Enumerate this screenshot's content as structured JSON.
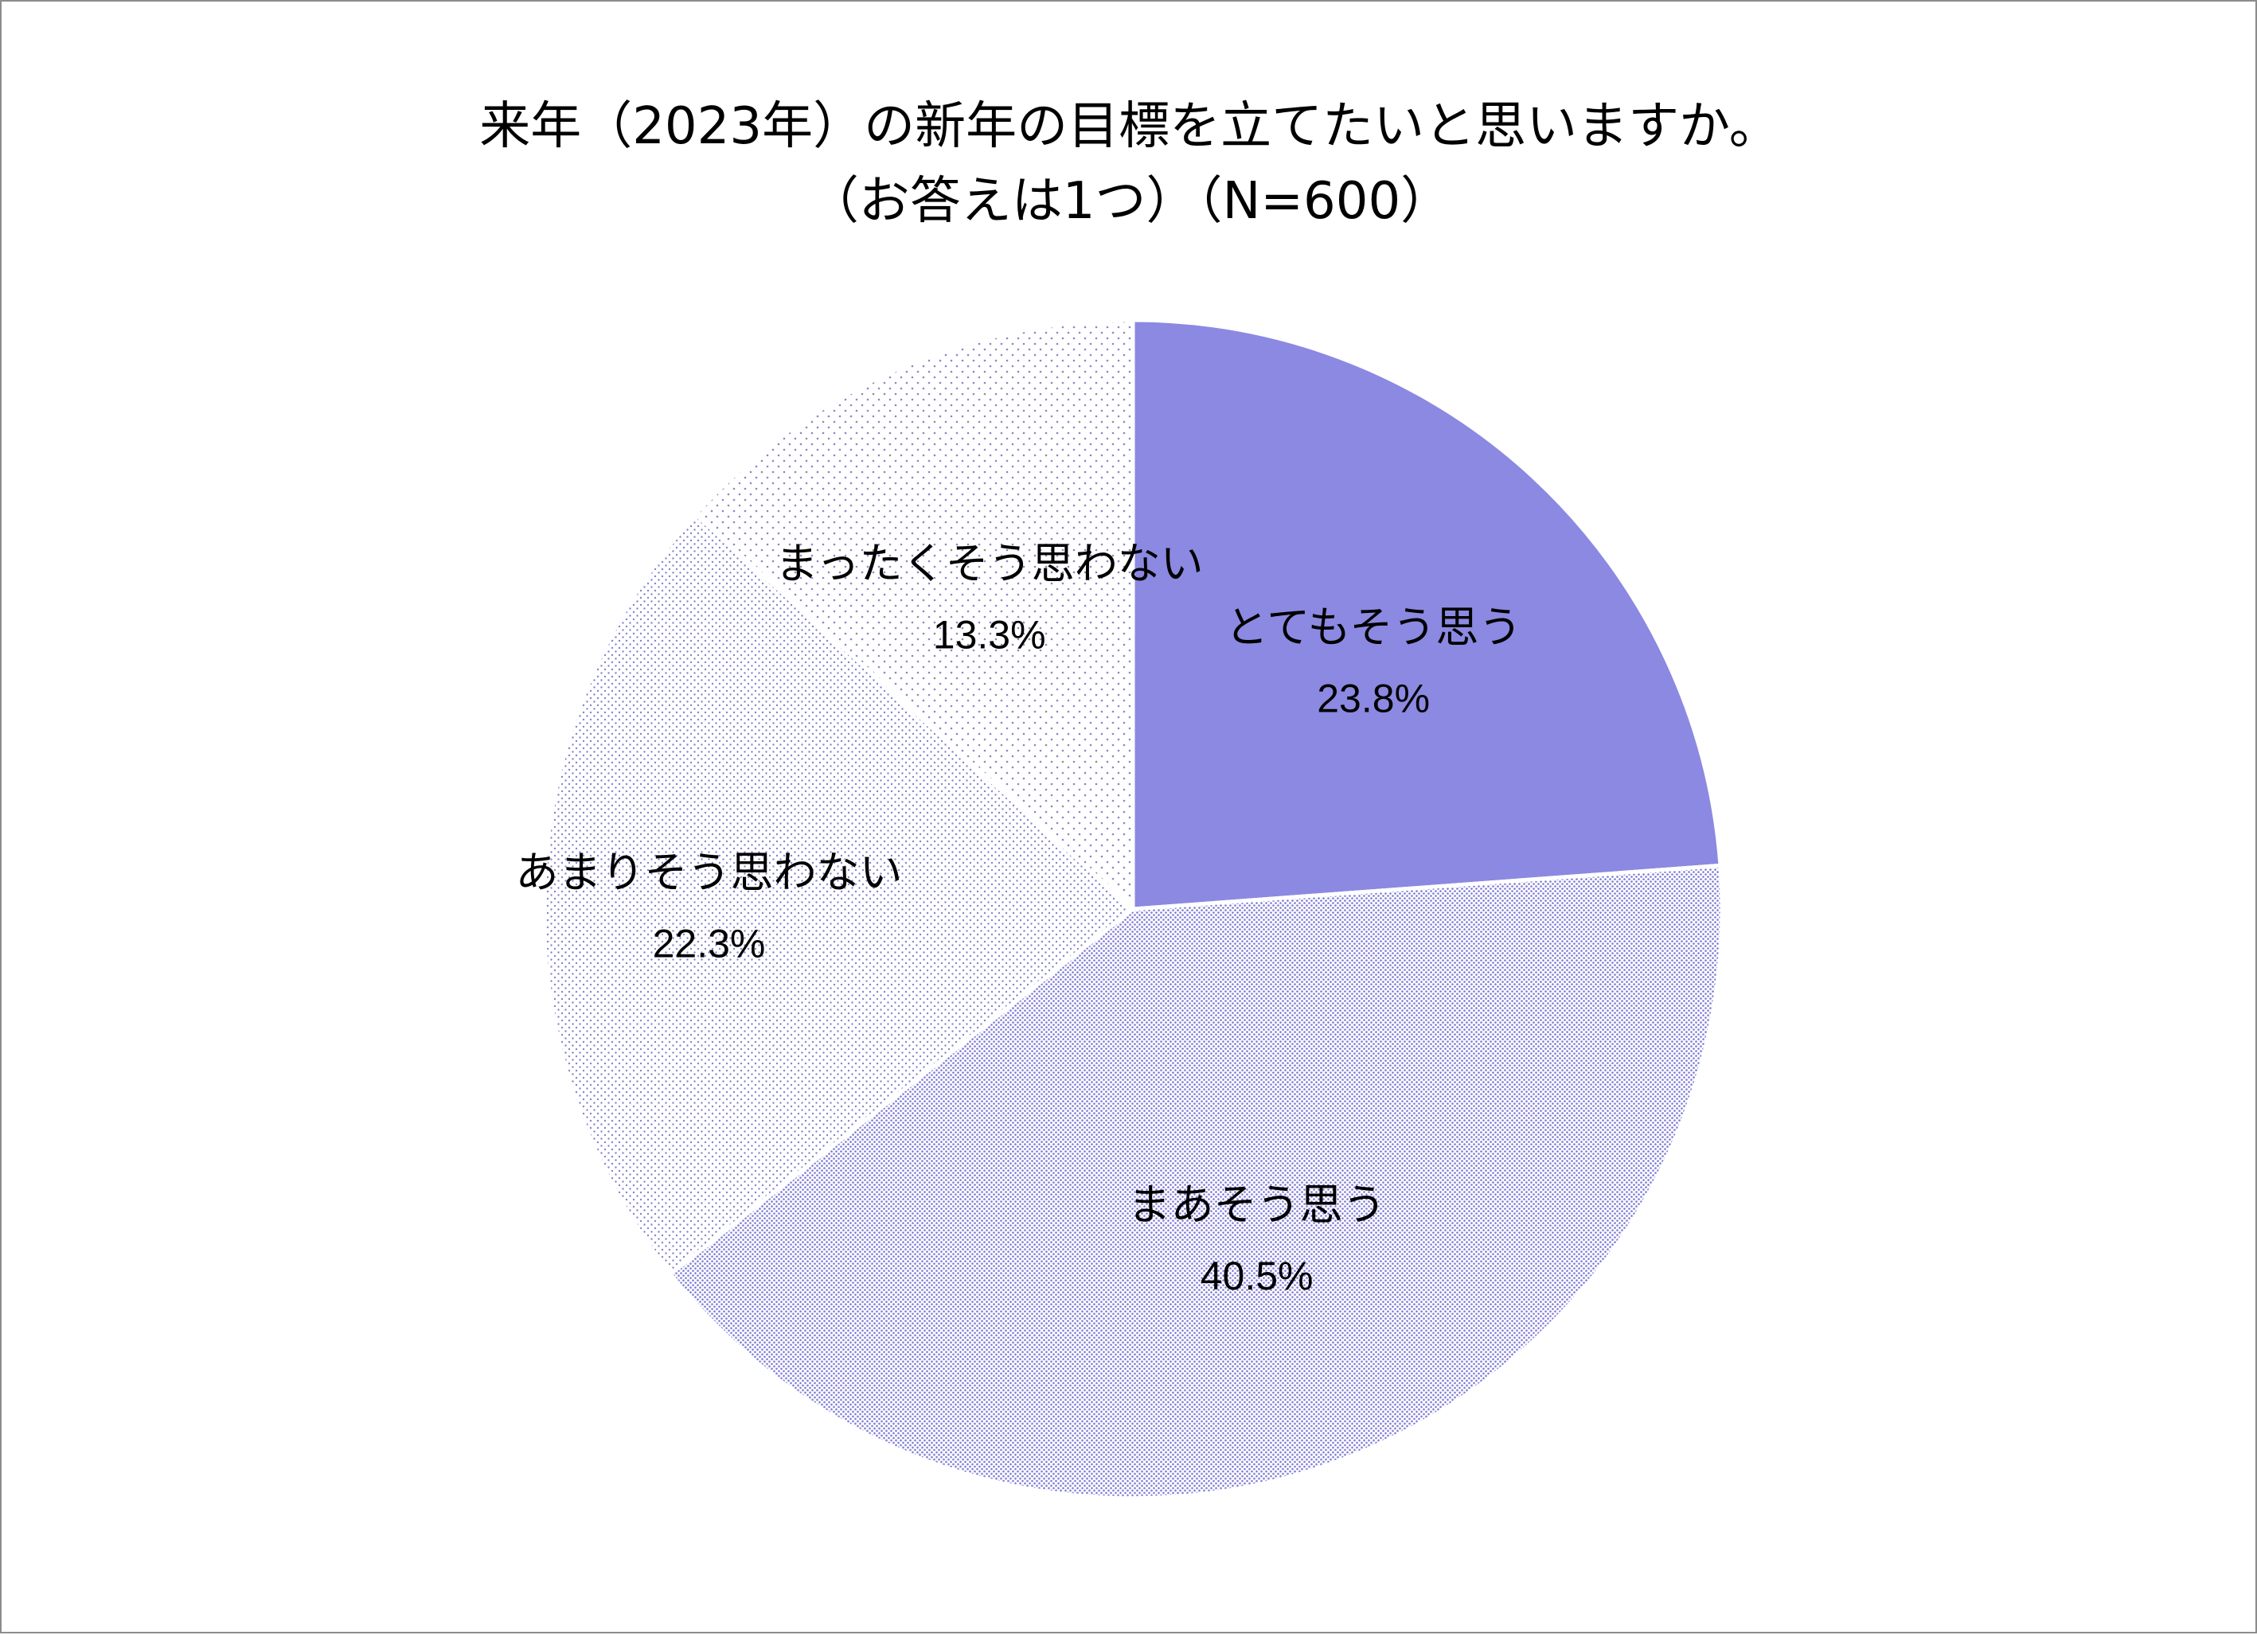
{
  "chart_data": {
    "type": "pie",
    "title_line1": "来年（2023年）の新年の目標を立てたいと思いますか。",
    "title_line2": "（お答えは1つ）（N=600）",
    "slices": [
      {
        "label": "とてもそう思う",
        "value": 23.8,
        "value_text": "23.8%",
        "color": "#8b89e1",
        "pattern": "solid"
      },
      {
        "label": "まあそう思う",
        "value": 40.5,
        "value_text": "40.5%",
        "color": "#7876d2",
        "pattern": "dense-dots"
      },
      {
        "label": "あまりそう思わない",
        "value": 22.3,
        "value_text": "22.3%",
        "color": "#8684c9",
        "pattern": "medium-dots"
      },
      {
        "label": "まったくそう思わない",
        "value": 13.3,
        "value_text": "13.3%",
        "color": "#8a88c4",
        "pattern": "sparse-dots"
      }
    ],
    "start_angle_deg": 0,
    "direction": "clockwise",
    "legend": "none"
  }
}
